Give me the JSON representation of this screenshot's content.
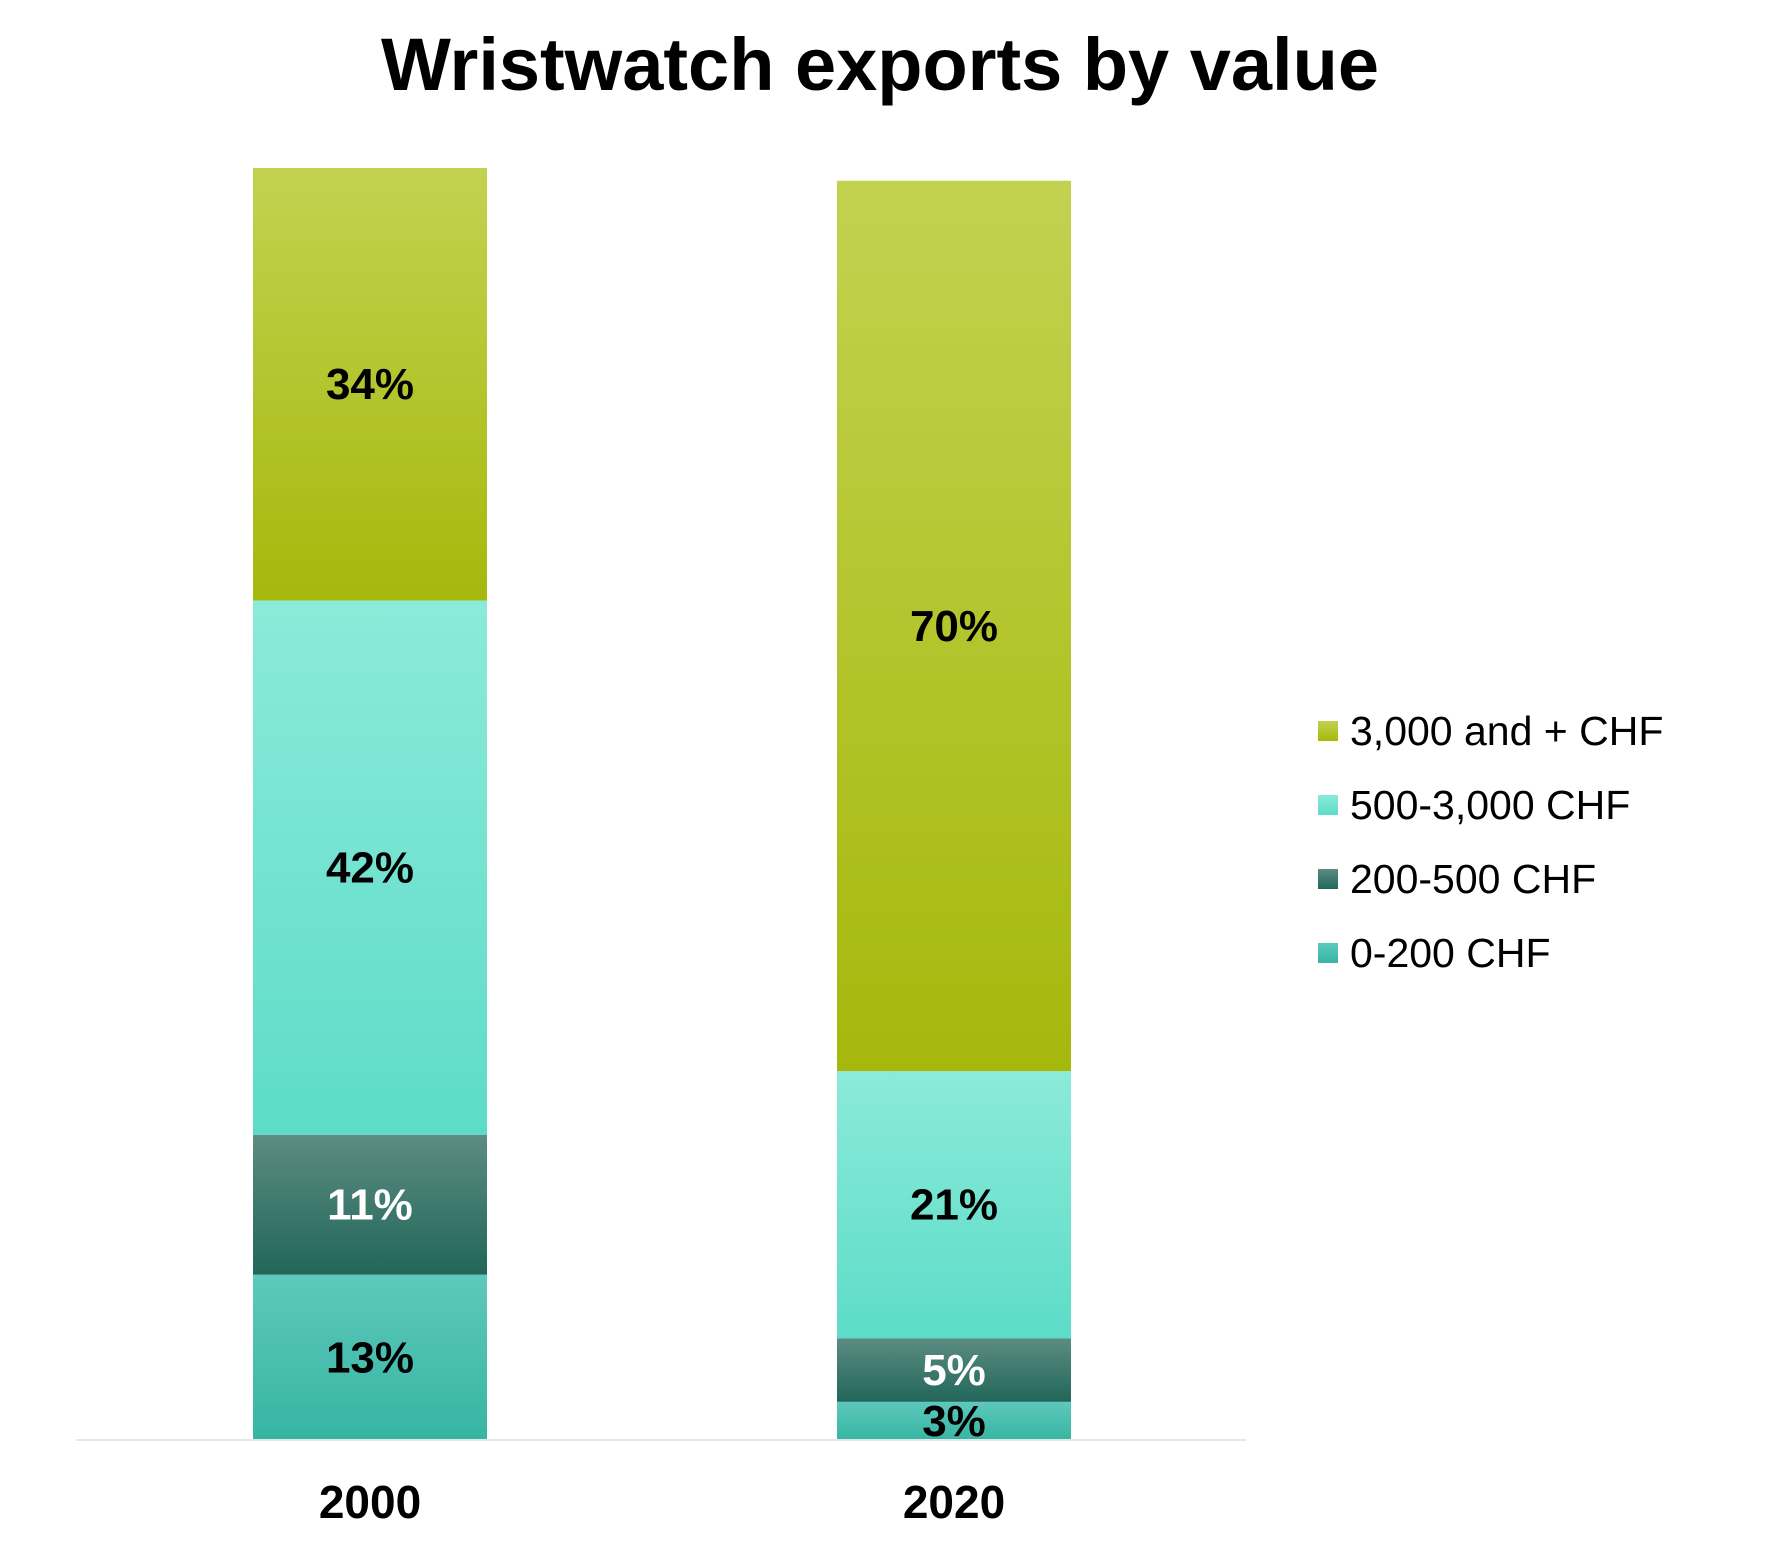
{
  "chart_data": {
    "type": "bar",
    "stacked": true,
    "title": "Wristwatch exports by value",
    "xlabel": "",
    "ylabel": "",
    "categories": [
      "2000",
      "2020"
    ],
    "ylim": [
      0,
      100
    ],
    "unit": "%",
    "grid": false,
    "legend_position": "right",
    "series": [
      {
        "name": "0-200 CHF",
        "values": [
          13,
          3
        ],
        "colors": [
          "#5ec8bc",
          "#36b5a3"
        ],
        "label_color": "#000000"
      },
      {
        "name": "200-500 CHF",
        "values": [
          11,
          5
        ],
        "colors": [
          "#5c8c82",
          "#22665a"
        ],
        "label_color": "#ffffff"
      },
      {
        "name": "500-3,000 CHF",
        "values": [
          42,
          21
        ],
        "colors": [
          "#8cead9",
          "#5cdcc8"
        ],
        "label_color": "#000000"
      },
      {
        "name": "3,000 and + CHF",
        "values": [
          34,
          70
        ],
        "colors": [
          "#c2d250",
          "#a6b80c"
        ],
        "label_color": "#000000"
      }
    ],
    "data_labels": [
      [
        "13%",
        "3%"
      ],
      [
        "11%",
        "5%"
      ],
      [
        "42%",
        "21%"
      ],
      [
        "34%",
        "70%"
      ]
    ]
  }
}
